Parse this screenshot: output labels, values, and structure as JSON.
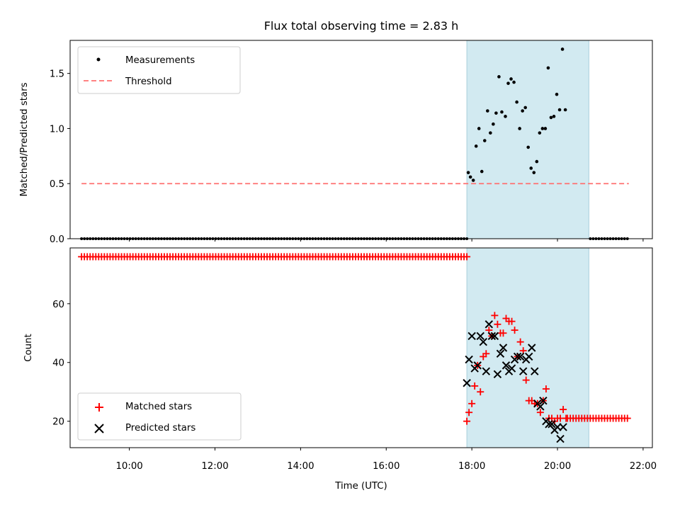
{
  "chart_data": [
    {
      "type": "scatter",
      "title": "Flux total observing time = 2.83 h",
      "ylabel": "Matched/Predicted stars",
      "xlim": [
        "08:37",
        "22:13"
      ],
      "ylim": [
        0,
        1.8
      ],
      "yticks": [
        "0.0",
        "0.5",
        "1.0",
        "1.5"
      ],
      "grid": false,
      "legend_position": "top-left",
      "observing_window": [
        "17:53",
        "20:44"
      ],
      "window_color": "#add8e6",
      "series": [
        {
          "name": "Measurements",
          "color": "#000000",
          "marker": "dot",
          "points": [
            [
              "17:55",
              0.6
            ],
            [
              "17:58",
              0.56
            ],
            [
              "18:02",
              0.53
            ],
            [
              "18:06",
              0.84
            ],
            [
              "18:10",
              1.0
            ],
            [
              "18:14",
              0.61
            ],
            [
              "18:18",
              0.89
            ],
            [
              "18:22",
              1.16
            ],
            [
              "18:26",
              0.96
            ],
            [
              "18:30",
              1.04
            ],
            [
              "18:34",
              1.14
            ],
            [
              "18:38",
              1.47
            ],
            [
              "18:42",
              1.15
            ],
            [
              "18:47",
              1.11
            ],
            [
              "18:51",
              1.41
            ],
            [
              "18:55",
              1.45
            ],
            [
              "18:59",
              1.42
            ],
            [
              "19:03",
              1.24
            ],
            [
              "19:07",
              1.0
            ],
            [
              "19:11",
              1.16
            ],
            [
              "19:15",
              1.19
            ],
            [
              "19:19",
              0.83
            ],
            [
              "19:23",
              0.64
            ],
            [
              "19:27",
              0.6
            ],
            [
              "19:31",
              0.7
            ],
            [
              "19:35",
              0.96
            ],
            [
              "19:39",
              1.0
            ],
            [
              "19:43",
              1.0
            ],
            [
              "19:47",
              1.55
            ],
            [
              "19:51",
              1.1
            ],
            [
              "19:55",
              1.11
            ],
            [
              "19:59",
              1.31
            ],
            [
              "20:03",
              1.17
            ],
            [
              "20:07",
              1.72
            ],
            [
              "20:11",
              1.17
            ]
          ],
          "zero_ranges": [
            [
              "08:53",
              "17:53",
              0.0
            ],
            [
              "20:46",
              "21:40",
              0.0
            ]
          ]
        },
        {
          "name": "Threshold",
          "color": "#ff7070",
          "style": "dashed",
          "x": [
            "08:53",
            "21:40"
          ],
          "y": [
            0.5,
            0.5
          ]
        }
      ]
    },
    {
      "type": "scatter",
      "xlabel": "Time (UTC)",
      "ylabel": "Count",
      "xlim": [
        "08:37",
        "22:13"
      ],
      "ylim": [
        11,
        79
      ],
      "yticks": [
        "20",
        "40",
        "60"
      ],
      "xticks": [
        "10:00",
        "12:00",
        "14:00",
        "16:00",
        "18:00",
        "20:00",
        "22:00"
      ],
      "grid": false,
      "legend_position": "bottom-left",
      "observing_window": [
        "17:53",
        "20:44"
      ],
      "window_color": "#add8e6",
      "series": [
        {
          "name": "Matched stars",
          "color": "#ff0000",
          "marker": "plus",
          "points": [
            [
              "17:53",
              20
            ],
            [
              "17:56",
              23
            ],
            [
              "18:00",
              26
            ],
            [
              "18:04",
              32
            ],
            [
              "18:08",
              39
            ],
            [
              "18:12",
              30
            ],
            [
              "18:16",
              42
            ],
            [
              "18:20",
              43
            ],
            [
              "18:24",
              51
            ],
            [
              "18:28",
              49
            ],
            [
              "18:32",
              56
            ],
            [
              "18:36",
              53
            ],
            [
              "18:40",
              50
            ],
            [
              "18:44",
              50
            ],
            [
              "18:48",
              55
            ],
            [
              "18:52",
              54
            ],
            [
              "18:56",
              54
            ],
            [
              "19:00",
              51
            ],
            [
              "19:04",
              42
            ],
            [
              "19:08",
              47
            ],
            [
              "19:12",
              44
            ],
            [
              "19:16",
              34
            ],
            [
              "19:20",
              27
            ],
            [
              "19:24",
              27
            ],
            [
              "19:28",
              26
            ],
            [
              "19:32",
              26
            ],
            [
              "19:36",
              23
            ],
            [
              "19:40",
              27
            ],
            [
              "19:44",
              31
            ],
            [
              "19:48",
              21
            ],
            [
              "19:52",
              21
            ],
            [
              "19:56",
              20
            ],
            [
              "20:00",
              21
            ],
            [
              "20:04",
              21
            ],
            [
              "20:08",
              24
            ],
            [
              "20:12",
              21
            ]
          ],
          "constant_ranges": [
            [
              "08:53",
              "17:53",
              76
            ],
            [
              "20:14",
              "21:40",
              21
            ]
          ]
        },
        {
          "name": "Predicted stars",
          "color": "#000000",
          "marker": "x",
          "points": [
            [
              "17:53",
              33
            ],
            [
              "17:56",
              41
            ],
            [
              "18:00",
              49
            ],
            [
              "18:04",
              38
            ],
            [
              "18:08",
              39
            ],
            [
              "18:12",
              49
            ],
            [
              "18:16",
              47
            ],
            [
              "18:20",
              37
            ],
            [
              "18:24",
              53
            ],
            [
              "18:28",
              49
            ],
            [
              "18:32",
              49
            ],
            [
              "18:36",
              36
            ],
            [
              "18:40",
              43
            ],
            [
              "18:44",
              45
            ],
            [
              "18:48",
              39
            ],
            [
              "18:52",
              37
            ],
            [
              "18:56",
              38
            ],
            [
              "19:00",
              41
            ],
            [
              "19:04",
              42
            ],
            [
              "19:08",
              42
            ],
            [
              "19:12",
              37
            ],
            [
              "19:16",
              41
            ],
            [
              "19:20",
              42
            ],
            [
              "19:24",
              45
            ],
            [
              "19:28",
              37
            ],
            [
              "19:32",
              26
            ],
            [
              "19:36",
              25
            ],
            [
              "19:40",
              27
            ],
            [
              "19:44",
              20
            ],
            [
              "19:48",
              19
            ],
            [
              "19:52",
              19
            ],
            [
              "19:56",
              17
            ],
            [
              "20:00",
              18
            ],
            [
              "20:04",
              14
            ],
            [
              "20:08",
              18
            ]
          ]
        }
      ]
    }
  ]
}
